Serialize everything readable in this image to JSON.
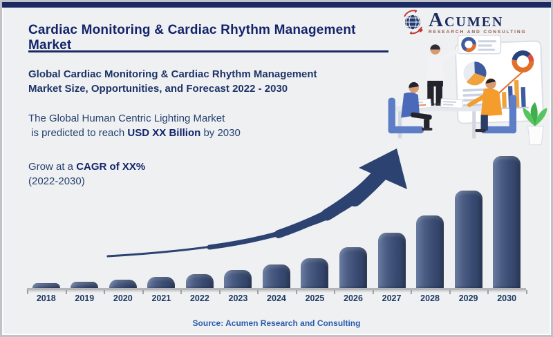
{
  "colors": {
    "top_bar_navy": "#1b2a63",
    "title_navy": "#14246b",
    "text_navy": "#27406f",
    "highlight_red": "#e21e22",
    "bar_navy": "#3a4c73",
    "arrow_navy": "#2c4271",
    "axis_gray": "#b5b6ba",
    "source_blue": "#2a5caa",
    "background": "#eef0f2"
  },
  "header": {
    "title": "Cardiac Monitoring & Cardiac Rhythm Management Market"
  },
  "logo": {
    "brand": "Acumen",
    "tagline": "Research and Consulting",
    "icon": "globe-with-red-orbit-arrows"
  },
  "intro": {
    "forecast_line1": "Global Cardiac Monitoring & Cardiac Rhythm Management",
    "forecast_line2": "Market Size, Opportunities, and Forecast 2022 - 2030",
    "prediction_line1": "The Global Human Centric Lighting Market",
    "prediction_pre": " is predicted to reach ",
    "prediction_usd": "USD ",
    "prediction_value": "XX",
    "prediction_billion": " Billion",
    "prediction_post": " by 2030",
    "cagr_pre": "Grow at a ",
    "cagr_label": "CAGR of ",
    "cagr_value": "XX",
    "cagr_suffix": "%",
    "cagr_period": "(2022-2030)"
  },
  "chart_data": {
    "type": "bar",
    "categories": [
      "2018",
      "2019",
      "2020",
      "2021",
      "2022",
      "2023",
      "2024",
      "2025",
      "2026",
      "2027",
      "2028",
      "2029",
      "2030"
    ],
    "values": [
      4,
      5,
      7,
      9,
      11,
      14,
      18,
      23,
      31,
      42,
      55,
      74,
      100
    ],
    "value_units": "relative index estimated from bar heights; no numeric y-axis shown (2030 = 100)",
    "title": "",
    "xlabel": "Year",
    "ylabel": "",
    "ylim": [
      0,
      100
    ],
    "grid": false,
    "legend": false,
    "annotations": [
      "curved upward growth arrow from 2019 toward 2027"
    ]
  },
  "footer": {
    "source": "Source: Acumen Research and Consulting"
  }
}
